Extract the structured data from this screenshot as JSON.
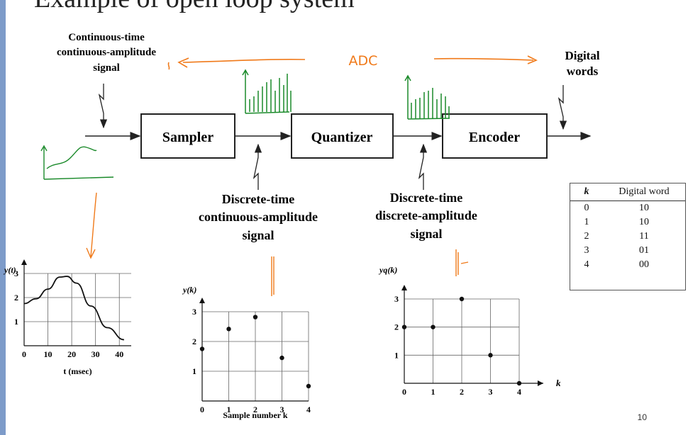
{
  "title_partial": "Example of open loop system",
  "signals": {
    "input": [
      "Continuous-time",
      "continuous-amplitude",
      "signal"
    ],
    "sampled": [
      "Discrete-time",
      "continuous-amplitude",
      "signal"
    ],
    "quantized": [
      "Discrete-time",
      "discrete-amplitude",
      "signal"
    ],
    "output": [
      "Digital",
      "words"
    ]
  },
  "blocks": {
    "sampler": "Sampler",
    "quantizer": "Quantizer",
    "encoder": "Encoder"
  },
  "annotation_adc": "ADC",
  "table": {
    "headers": [
      "k",
      "Digital word"
    ],
    "rows": [
      [
        "0",
        "10"
      ],
      [
        "1",
        "10"
      ],
      [
        "2",
        "11"
      ],
      [
        "3",
        "01"
      ],
      [
        "4",
        "00"
      ]
    ]
  },
  "chart_data": [
    {
      "type": "line",
      "ylabel": "y(t)",
      "xlabel": "t (msec)",
      "xlim": [
        0,
        45
      ],
      "ylim": [
        0,
        3
      ],
      "xticks": [
        "0",
        "10",
        "20",
        "30",
        "40"
      ],
      "yticks": [
        "1",
        "2",
        "3"
      ],
      "grid": true,
      "x": [
        0,
        5,
        10,
        15,
        18,
        22,
        28,
        35,
        42
      ],
      "y": [
        1.75,
        1.95,
        2.35,
        2.85,
        2.88,
        2.6,
        1.65,
        0.75,
        0.25
      ]
    },
    {
      "type": "scatter",
      "ylabel": "y(k)",
      "xlabel": "Sample number k",
      "xlim": [
        0,
        4
      ],
      "ylim": [
        0,
        3
      ],
      "xticks": [
        "0",
        "1",
        "2",
        "3",
        "4"
      ],
      "yticks": [
        "1",
        "2",
        "3"
      ],
      "grid": true,
      "x": [
        0,
        1,
        2,
        3,
        4
      ],
      "y": [
        1.75,
        2.42,
        2.82,
        1.45,
        0.5
      ]
    },
    {
      "type": "scatter",
      "ylabel": "yq(k)",
      "xlabel": "k",
      "xlim": [
        0,
        4
      ],
      "ylim": [
        0,
        3
      ],
      "xticks": [
        "0",
        "1",
        "2",
        "3",
        "4"
      ],
      "yticks": [
        "1",
        "2",
        "3"
      ],
      "grid": true,
      "x": [
        0,
        1,
        2,
        3,
        4
      ],
      "y": [
        2,
        2,
        3,
        1,
        0
      ]
    }
  ],
  "page_number": "10"
}
